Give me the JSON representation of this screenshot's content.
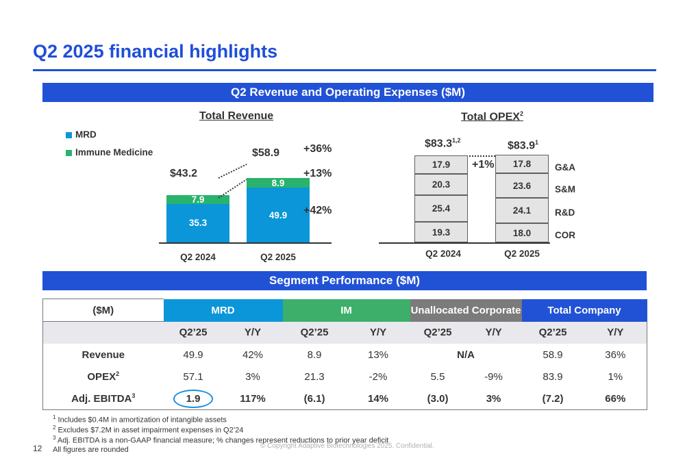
{
  "page": {
    "title": "Q2 2025 financial highlights",
    "page_number": "12",
    "copyright": "© Copyright  Adaptive Biotechnologies 2025. Confidential."
  },
  "section1": {
    "heading": "Q2 Revenue and Operating Expenses ($M)"
  },
  "revenue_chart": {
    "title": "Total Revenue",
    "legend": [
      {
        "label": "MRD",
        "color": "#0a96d8"
      },
      {
        "label": "Immune Medicine",
        "color": "#29b36d"
      }
    ],
    "totals": [
      "$43.2",
      "$58.9"
    ],
    "growth": {
      "total": "+36%",
      "im": "+13%",
      "mrd": "+42%"
    }
  },
  "opex_chart": {
    "title": "Total OPEX",
    "title_sup": "2",
    "totals": [
      {
        "value": "$83.3",
        "sup": "1,2"
      },
      {
        "value": "$83.9",
        "sup": "1"
      }
    ],
    "change": "+1%",
    "categories": [
      "G&A",
      "S&M",
      "R&D",
      "COR"
    ]
  },
  "chart_data": [
    {
      "type": "bar",
      "title": "Total Revenue",
      "categories": [
        "Q2 2024",
        "Q2 2025"
      ],
      "series": [
        {
          "name": "MRD",
          "values": [
            35.3,
            49.9
          ]
        },
        {
          "name": "Immune Medicine",
          "values": [
            7.9,
            8.9
          ]
        }
      ]
    },
    {
      "type": "bar",
      "title": "Total OPEX",
      "categories": [
        "Q2 2024",
        "Q2 2025"
      ],
      "series": [
        {
          "name": "COR",
          "values": [
            19.3,
            18.0
          ]
        },
        {
          "name": "R&D",
          "values": [
            25.4,
            24.1
          ]
        },
        {
          "name": "S&M",
          "values": [
            20.3,
            23.6
          ]
        },
        {
          "name": "G&A",
          "values": [
            17.9,
            17.8
          ]
        }
      ]
    }
  ],
  "section2": {
    "heading": "Segment Performance ($M)"
  },
  "segment_table": {
    "corner": "($M)",
    "groups": [
      {
        "label": "MRD",
        "color": "#0a96d8"
      },
      {
        "label": "IM",
        "color": "#3daf6a"
      },
      {
        "label": "Unallocated Corporate",
        "color": "#7b7b7b"
      },
      {
        "label": "Total Company",
        "color": "#2152d6"
      }
    ],
    "subheaders": [
      "Q2’25",
      "Y/Y",
      "Q2’25",
      "Y/Y",
      "Q2’25",
      "Y/Y",
      "Q2’25",
      "Y/Y"
    ],
    "rows": {
      "revenue": {
        "label": "Revenue",
        "cells": [
          "49.9",
          "42%",
          "8.9",
          "13%",
          "N/A",
          "58.9",
          "36%"
        ]
      },
      "opex": {
        "label": "OPEX",
        "sup": "2",
        "cells": [
          "57.1",
          "3%",
          "21.3",
          "-2%",
          "5.5",
          "-9%",
          "83.9",
          "1%"
        ]
      },
      "ebitda": {
        "label": "Adj. EBITDA",
        "sup": "3",
        "cells": [
          "1.9",
          "117%",
          "(6.1)",
          "14%",
          "(3.0)",
          "3%",
          "(7.2)",
          "66%"
        ]
      }
    }
  },
  "footnotes": [
    {
      "num": "1",
      "text": "Includes $0.4M in amortization of intangible assets"
    },
    {
      "num": "2",
      "text": "Excludes $7.2M in asset impairment expenses in Q2’24"
    },
    {
      "num": "3",
      "text": "Adj. EBITDA is a non-GAAP financial measure; % changes represent reductions to prior year deficit"
    },
    {
      "num": "",
      "text": "All figures are rounded"
    }
  ]
}
